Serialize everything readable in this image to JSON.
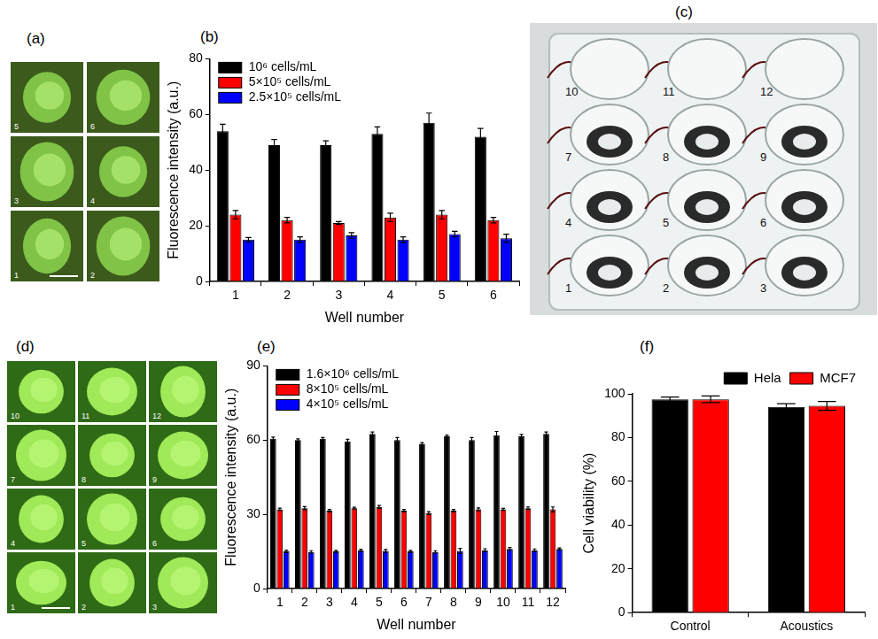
{
  "chart_data": [
    {
      "panel_label": "(b)",
      "type": "bar",
      "x_label": "Well number",
      "y_label": "Fluorescence intensity (a.u.)",
      "categories": [
        "1",
        "2",
        "3",
        "4",
        "5",
        "6"
      ],
      "series": [
        {
          "name": "10⁶ cells/mL",
          "color": "#000000",
          "values": [
            54,
            49,
            49,
            53,
            57,
            52
          ],
          "errors": [
            2.5,
            2,
            1.5,
            2.5,
            3.5,
            3
          ]
        },
        {
          "name": "5×10⁵ cells/mL",
          "color": "#ff0000",
          "values": [
            24,
            22,
            21,
            23,
            24,
            22
          ],
          "errors": [
            1.5,
            1,
            0.5,
            1.5,
            1.5,
            1
          ]
        },
        {
          "name": "2.5×10⁵ cells/mL",
          "color": "#0000ff",
          "values": [
            15,
            15,
            16.5,
            15,
            17,
            15.5
          ],
          "errors": [
            0.8,
            1,
            1,
            1,
            1,
            1.5
          ]
        }
      ],
      "ylim": [
        0,
        80
      ],
      "yticks": [
        0,
        20,
        40,
        60,
        80
      ],
      "grid": false,
      "legend": "upper left"
    },
    {
      "panel_label": "(e)",
      "type": "bar",
      "x_label": "Well number",
      "y_label": "Fluorescence intensity (a.u.)",
      "categories": [
        "1",
        "2",
        "3",
        "4",
        "5",
        "6",
        "7",
        "8",
        "9",
        "10",
        "11",
        "12"
      ],
      "series": [
        {
          "name": "1.6×10⁶ cells/mL",
          "color": "#000000",
          "values": [
            60.5,
            60,
            60.5,
            59.5,
            62.5,
            60,
            58.5,
            61.5,
            60,
            62,
            61.5,
            62.5
          ],
          "errors": [
            0.7,
            0.5,
            0.5,
            0.8,
            0.8,
            1,
            0.5,
            0.5,
            1,
            1.5,
            0.8,
            0.8
          ]
        },
        {
          "name": "8×10⁵ cells/mL",
          "color": "#ff0000",
          "values": [
            32,
            32.5,
            31.5,
            32.5,
            33,
            31.5,
            30.5,
            31.5,
            32,
            32,
            32.5,
            32
          ],
          "errors": [
            0.5,
            0.6,
            0.5,
            0.4,
            0.6,
            0.5,
            0.6,
            0.5,
            0.6,
            0.4,
            0.5,
            1
          ]
        },
        {
          "name": "4×10⁵ cells/mL",
          "color": "#0000ff",
          "values": [
            15,
            14.8,
            15,
            15.5,
            15.2,
            15,
            14.8,
            15.2,
            15.5,
            16,
            15.5,
            16
          ],
          "errors": [
            0.5,
            0.5,
            0.4,
            0.4,
            0.6,
            0.4,
            0.5,
            1,
            0.6,
            0.6,
            0.5,
            0.4
          ]
        }
      ],
      "ylim": [
        0,
        90
      ],
      "yticks": [
        0,
        30,
        60,
        90
      ],
      "grid": false,
      "legend": "upper left"
    },
    {
      "panel_label": "(f)",
      "type": "bar",
      "y_label": "Cell viability (%)",
      "categories": [
        "Control",
        "Acoustics"
      ],
      "series": [
        {
          "name": "Hela",
          "color": "#000000",
          "values": [
            97.5,
            94
          ],
          "errors": [
            1,
            1.5
          ]
        },
        {
          "name": "MCF7",
          "color": "#ff0000",
          "values": [
            97.5,
            94.5
          ],
          "errors": [
            1.5,
            2
          ]
        }
      ],
      "ylim": [
        0,
        100
      ],
      "yticks": [
        0,
        20,
        40,
        60,
        80,
        100
      ],
      "grid": false,
      "legend": "upper right"
    }
  ],
  "images": [
    {
      "panel_label": "(a)",
      "tile_labels": [
        [
          "5",
          "6"
        ],
        [
          "3",
          "4"
        ],
        [
          "1",
          "2"
        ]
      ]
    },
    {
      "panel_label": "(c)",
      "well_labels": [
        [
          "10",
          "11",
          "12"
        ],
        [
          "7",
          "8",
          "9"
        ],
        [
          "4",
          "5",
          "6"
        ],
        [
          "1",
          "2",
          "3"
        ]
      ]
    },
    {
      "panel_label": "(d)",
      "tile_labels": [
        [
          "10",
          "11",
          "12"
        ],
        [
          "7",
          "8",
          "9"
        ],
        [
          "4",
          "5",
          "6"
        ],
        [
          "1",
          "2",
          "3"
        ]
      ]
    }
  ]
}
